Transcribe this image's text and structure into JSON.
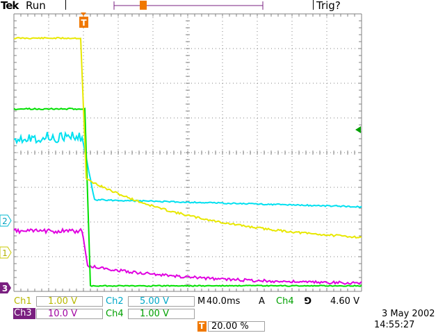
{
  "header": {
    "brand": "Tek",
    "status": "Run",
    "trigger_status": "Trig?",
    "trigger_marker": "T"
  },
  "markers": {
    "ch1": "1",
    "ch2": "2",
    "ch3": "3",
    "trigger_T": "T"
  },
  "readout": {
    "ch1_label": "Ch1",
    "ch1_scale": "1.00 V",
    "ch2_label": "Ch2",
    "ch2_scale": "5.00 V",
    "ch3_label": "Ch3",
    "ch3_scale": "10.0 V",
    "ch4_label": "Ch4",
    "ch4_scale": "1.00 V",
    "timebase_prefix": "M",
    "timebase": "40.0ms",
    "trigger_mode": "A",
    "trigger_source": "Ch4",
    "trigger_slope": "⅁",
    "trigger_level": "4.60 V",
    "trigger_position": "20.00 %",
    "date": "3 May 2002",
    "time": "14:55:27"
  },
  "colors": {
    "ch1": "#e8e800",
    "ch2": "#00e0f0",
    "ch3": "#e000e0",
    "ch4": "#00e000",
    "trigger": "#f07800",
    "graticule": "#808080"
  },
  "icons": {
    "trigger_level_arrow": "left-arrow-icon",
    "trigger_position_marker": "t-marker-icon"
  }
}
